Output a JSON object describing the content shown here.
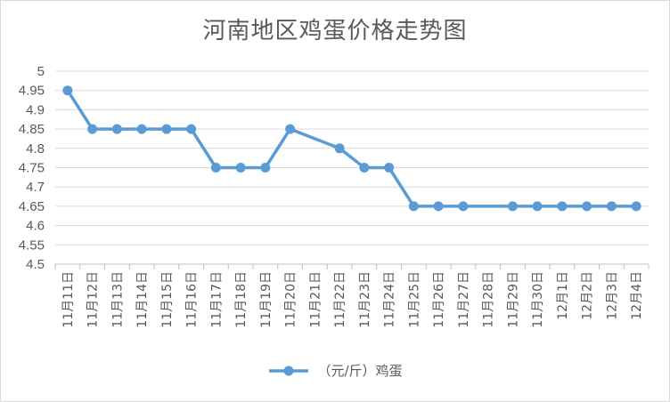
{
  "chart_data": {
    "type": "line",
    "title": "河南地区鸡蛋价格走势图",
    "xlabel": "",
    "ylabel": "",
    "categories": [
      "11月11日",
      "11月12日",
      "11月13日",
      "11月14日",
      "11月15日",
      "11月16日",
      "11月17日",
      "11月18日",
      "11月19日",
      "11月20日",
      "11月21日",
      "11月22日",
      "11月23日",
      "11月24日",
      "11月25日",
      "11月26日",
      "11月27日",
      "11月28日",
      "11月29日",
      "11月30日",
      "12月1日",
      "12月2日",
      "12月3日",
      "12月4日"
    ],
    "yticks": [
      "4.5",
      "4.55",
      "4.6",
      "4.65",
      "4.7",
      "4.75",
      "4.8",
      "4.85",
      "4.9",
      "4.95",
      "5"
    ],
    "ylim": [
      4.5,
      5
    ],
    "grid": true,
    "legend_position": "bottom",
    "series": [
      {
        "name": "（元/斤）鸡蛋",
        "color": "#5b9bd5",
        "values": [
          4.95,
          4.85,
          4.85,
          4.85,
          4.85,
          4.85,
          4.75,
          4.75,
          4.75,
          4.85,
          null,
          4.8,
          4.75,
          4.75,
          4.65,
          4.65,
          4.65,
          null,
          4.65,
          4.65,
          4.65,
          4.65,
          4.65,
          4.65
        ]
      }
    ]
  }
}
